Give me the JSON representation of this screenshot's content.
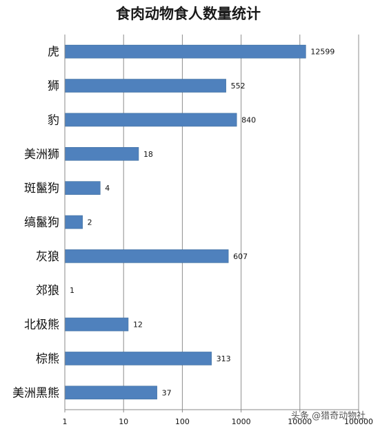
{
  "chart_data": {
    "type": "bar",
    "orientation": "horizontal",
    "title": "食肉动物食人数量统计",
    "categories": [
      "虎",
      "狮",
      "豹",
      "美洲狮",
      "斑鬣狗",
      "缟鬣狗",
      "灰狼",
      "郊狼",
      "北极熊",
      "棕熊",
      "美洲黑熊"
    ],
    "values": [
      12599,
      552,
      840,
      18,
      4,
      2,
      607,
      1,
      12,
      313,
      37
    ],
    "xscale": "log",
    "xlim": [
      1,
      100000
    ],
    "xticks": [
      "1",
      "10",
      "100",
      "1000",
      "10000",
      "100000"
    ],
    "grid": true,
    "bar_color": "#4f81bd"
  },
  "watermark": "头条 @猎奇动物社"
}
